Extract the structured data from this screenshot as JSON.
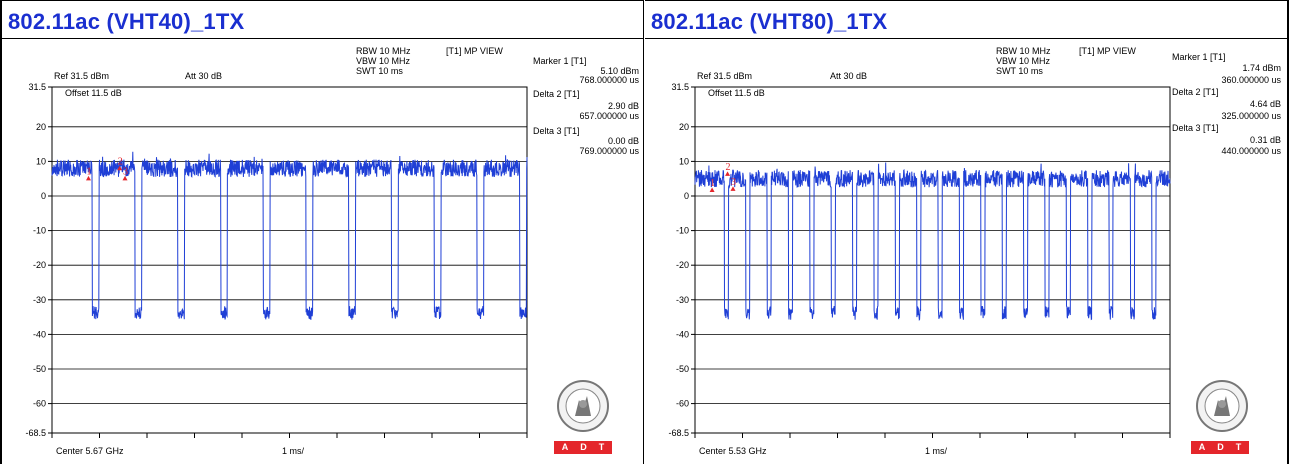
{
  "charts": [
    {
      "title": "802.11ac (VHT40)_1TX",
      "rbw": "RBW 10 MHz",
      "vbw": "VBW 10 MHz",
      "swt": "SWT 10 ms",
      "view": "[T1] MP VIEW",
      "ref": "Ref 31.5 dBm",
      "att": "Att  30 dB",
      "offset": "Offset 11.5 dB",
      "center": "Center 5.67 GHz",
      "span": "1 ms/",
      "markers": [
        {
          "label": "Marker 1 [T1]",
          "value": "5.10 dBm",
          "time": "768.000000 us"
        },
        {
          "label": "Delta 2 [T1]",
          "value": "2.90 dB",
          "time": "657.000000 us"
        },
        {
          "label": "Delta 3 [T1]",
          "value": "0.00 dB",
          "time": "769.000000 us"
        }
      ]
    },
    {
      "title": "802.11ac (VHT80)_1TX",
      "rbw": "RBW 10 MHz",
      "vbw": "VBW 10 MHz",
      "swt": "SWT 10 ms",
      "view": "[T1] MP VIEW",
      "ref": "Ref 31.5 dBm",
      "att": "Att  30 dB",
      "offset": "Offset 11.5 dB",
      "center": "Center 5.53 GHz",
      "span": "1 ms/",
      "markers": [
        {
          "label": "Marker 1 [T1]",
          "value": "1.74 dBm",
          "time": "360.000000 us"
        },
        {
          "label": "Delta 2 [T1]",
          "value": "4.64 dB",
          "time": "325.000000 us"
        },
        {
          "label": "Delta 3 [T1]",
          "value": "0.31 dB",
          "time": "440.000000 us"
        }
      ]
    }
  ],
  "logo": {
    "adt_letters": [
      "A",
      "D",
      "T"
    ]
  },
  "colors": {
    "title": "#1a2fd0",
    "trace": "#1f3fd6",
    "marker": "#e4262b",
    "adt": "#e4262b"
  },
  "chart_data": [
    {
      "type": "line",
      "title": "802.11ac (VHT40)_1TX",
      "xlabel": "",
      "ylabel": "",
      "xlim": [
        0,
        10
      ],
      "xunit": "ms",
      "ylim": [
        -68.5,
        31.5
      ],
      "yunit": "dBm",
      "yticks": [
        "31.5",
        "20",
        "10",
        "0",
        "-10",
        "-20",
        "-30",
        "-40",
        "-50",
        "-60",
        "-68.5"
      ],
      "grid": true,
      "burst": {
        "on_level": 8,
        "off_level": -33,
        "period_ms": 0.9,
        "off_duration_ms": 0.14,
        "first_off_ms": 0.85,
        "num_gaps": 11
      },
      "markers": [
        {
          "id": "1",
          "x_ms": 0.768,
          "y": 5.1
        },
        {
          "id": "2",
          "x_ms": 1.425,
          "y": 8.0
        },
        {
          "id": "3",
          "x_ms": 1.537,
          "y": 5.1
        }
      ]
    },
    {
      "type": "line",
      "title": "802.11ac (VHT80)_1TX",
      "xlabel": "",
      "ylabel": "",
      "xlim": [
        0,
        10
      ],
      "xunit": "ms",
      "ylim": [
        -68.5,
        31.5
      ],
      "yunit": "dBm",
      "yticks": [
        "31.5",
        "20",
        "10",
        "0",
        "-10",
        "-20",
        "-30",
        "-40",
        "-50",
        "-60",
        "-68.5"
      ],
      "grid": true,
      "burst": {
        "on_level": 5,
        "off_level": -33,
        "period_ms": 0.45,
        "off_duration_ms": 0.08,
        "first_off_ms": 0.62,
        "num_gaps": 21
      },
      "markers": [
        {
          "id": "1",
          "x_ms": 0.36,
          "y": 1.74
        },
        {
          "id": "2",
          "x_ms": 0.685,
          "y": 6.38
        },
        {
          "id": "3",
          "x_ms": 0.8,
          "y": 2.05
        }
      ]
    }
  ]
}
